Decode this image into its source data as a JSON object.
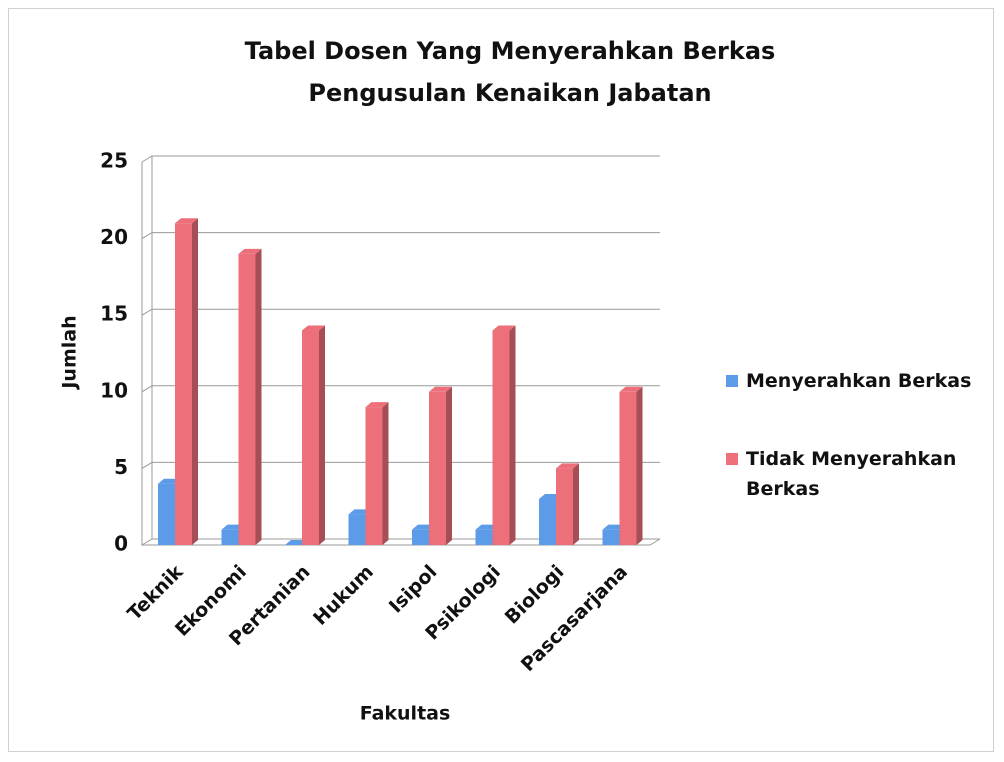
{
  "chart_data": {
    "type": "bar3d",
    "title": "Tabel Dosen Yang Menyerahkan Berkas Pengusulan Kenaikan Jabatan",
    "xlabel": "Fakultas",
    "ylabel": "Jumlah",
    "categories": [
      "Teknik",
      "Ekonomi",
      "Pertanian",
      "Hukum",
      "Isipol",
      "Psikologi",
      "Biologi",
      "Pascasarjana"
    ],
    "series": [
      {
        "name": "Menyerahkan Berkas",
        "color": "#5b9be8",
        "values": [
          4,
          1,
          0,
          2,
          1,
          1,
          3,
          1
        ]
      },
      {
        "name": "Tidak Menyerahkan Berkas",
        "color": "#ec6f7a",
        "values": [
          21,
          19,
          14,
          9,
          10,
          14,
          5,
          10
        ]
      }
    ],
    "ylim": [
      0,
      25
    ],
    "yticks": [
      0,
      5,
      10,
      15,
      20,
      25
    ],
    "grid": true,
    "legend": "right"
  }
}
